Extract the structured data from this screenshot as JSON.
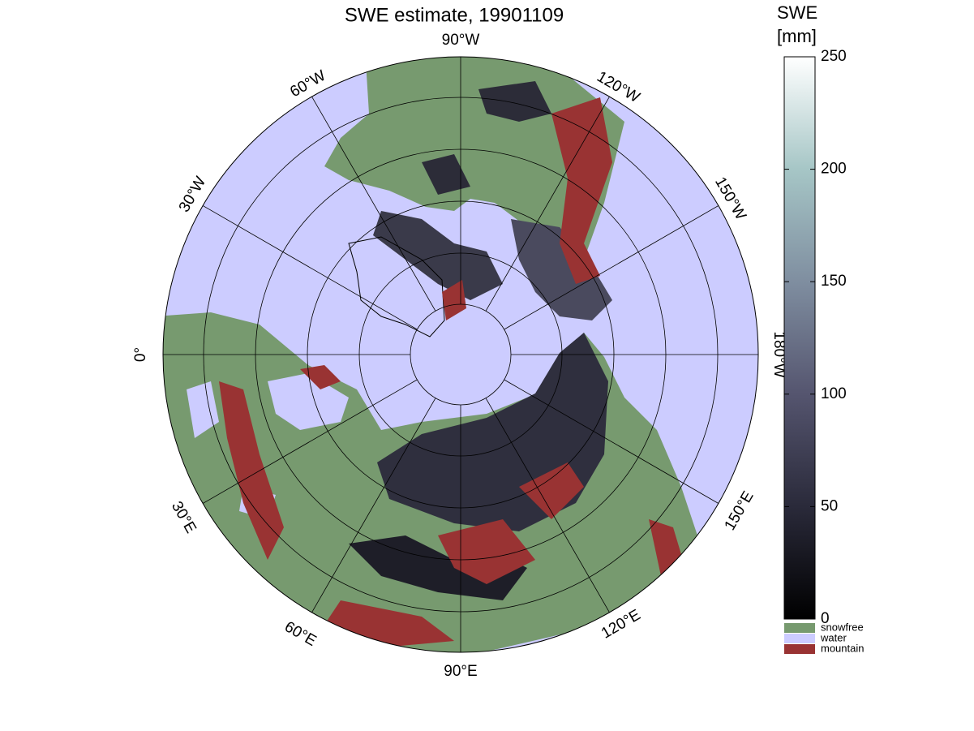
{
  "title": "SWE estimate, 19901109",
  "map": {
    "longitude_labels": [
      "90°W",
      "120°W",
      "150°W",
      "180°W",
      "150°E",
      "120°E",
      "90°E",
      "60°E",
      "30°E",
      "0°",
      "30°W",
      "60°W"
    ]
  },
  "colorbar": {
    "title": [
      "SWE",
      "[mm]"
    ],
    "lim": [
      0,
      250
    ],
    "ticks": [
      0,
      50,
      100,
      150,
      200,
      250
    ],
    "colors": [
      "#000000",
      "#2a2a3a",
      "#55556f",
      "#7f8ea0",
      "#a6c6c6",
      "#ffffff"
    ]
  },
  "legend": [
    {
      "name": "snowfree",
      "color": "#779a6f"
    },
    {
      "name": "water",
      "color": "#ccccff"
    },
    {
      "name": "mountain",
      "color": "#993333"
    }
  ]
}
